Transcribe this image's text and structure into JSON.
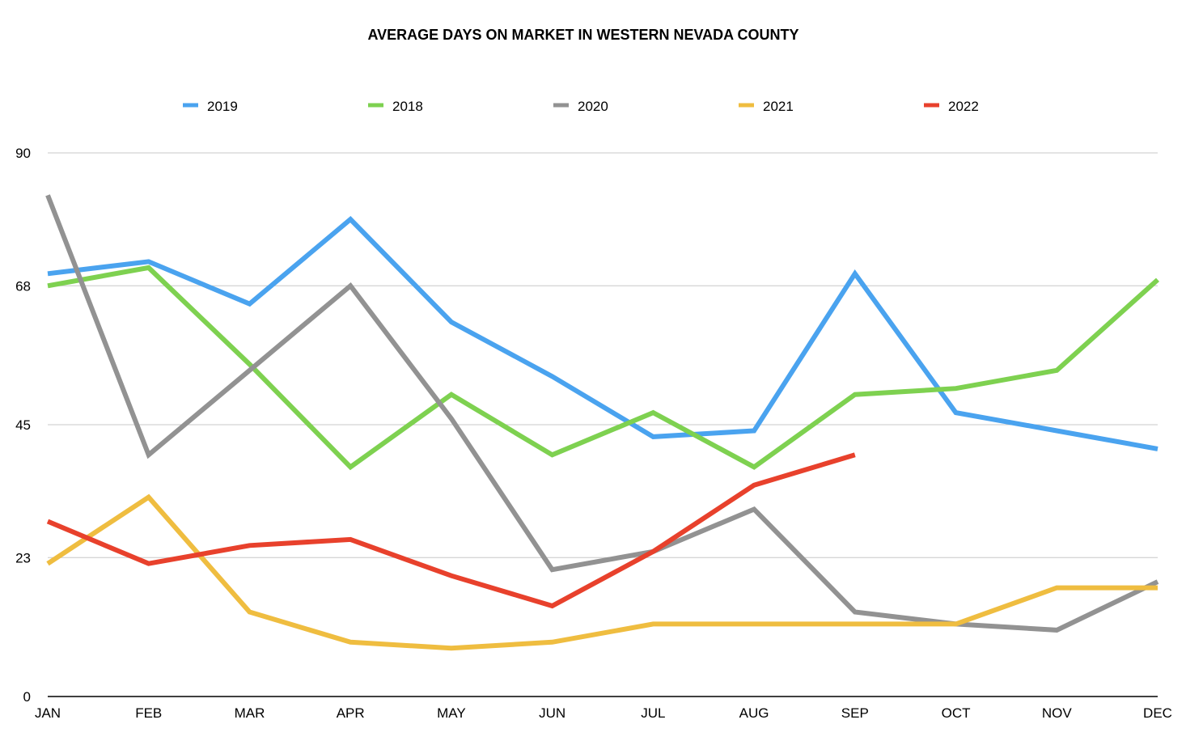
{
  "chart_data": {
    "type": "line",
    "title": "AVERAGE DAYS ON MARKET IN WESTERN NEVADA COUNTY",
    "xlabel": "",
    "ylabel": "",
    "categories": [
      "JAN",
      "FEB",
      "MAR",
      "APR",
      "MAY",
      "JUN",
      "JUL",
      "AUG",
      "SEP",
      "OCT",
      "NOV",
      "DEC"
    ],
    "ylim": [
      0,
      90
    ],
    "yticks": [
      0,
      23,
      45,
      68,
      90
    ],
    "grid": true,
    "legend_position": "top",
    "series": [
      {
        "name": "2019",
        "color": "#4aa3ef",
        "values": [
          70,
          72,
          65,
          79,
          62,
          53,
          43,
          44,
          70,
          47,
          44,
          41
        ]
      },
      {
        "name": "2018",
        "color": "#7ed150",
        "values": [
          68,
          71,
          55,
          38,
          50,
          40,
          47,
          38,
          50,
          51,
          54,
          69
        ]
      },
      {
        "name": "2020",
        "color": "#929292",
        "values": [
          83,
          40,
          54,
          68,
          46,
          21,
          24,
          31,
          14,
          12,
          11,
          19
        ]
      },
      {
        "name": "2021",
        "color": "#efbd40",
        "values": [
          22,
          33,
          14,
          9,
          8,
          9,
          12,
          12,
          12,
          12,
          18,
          18
        ]
      },
      {
        "name": "2022",
        "color": "#e8412c",
        "values": [
          29,
          22,
          25,
          26,
          20,
          15,
          24,
          35,
          40,
          null,
          null,
          null
        ]
      }
    ]
  }
}
